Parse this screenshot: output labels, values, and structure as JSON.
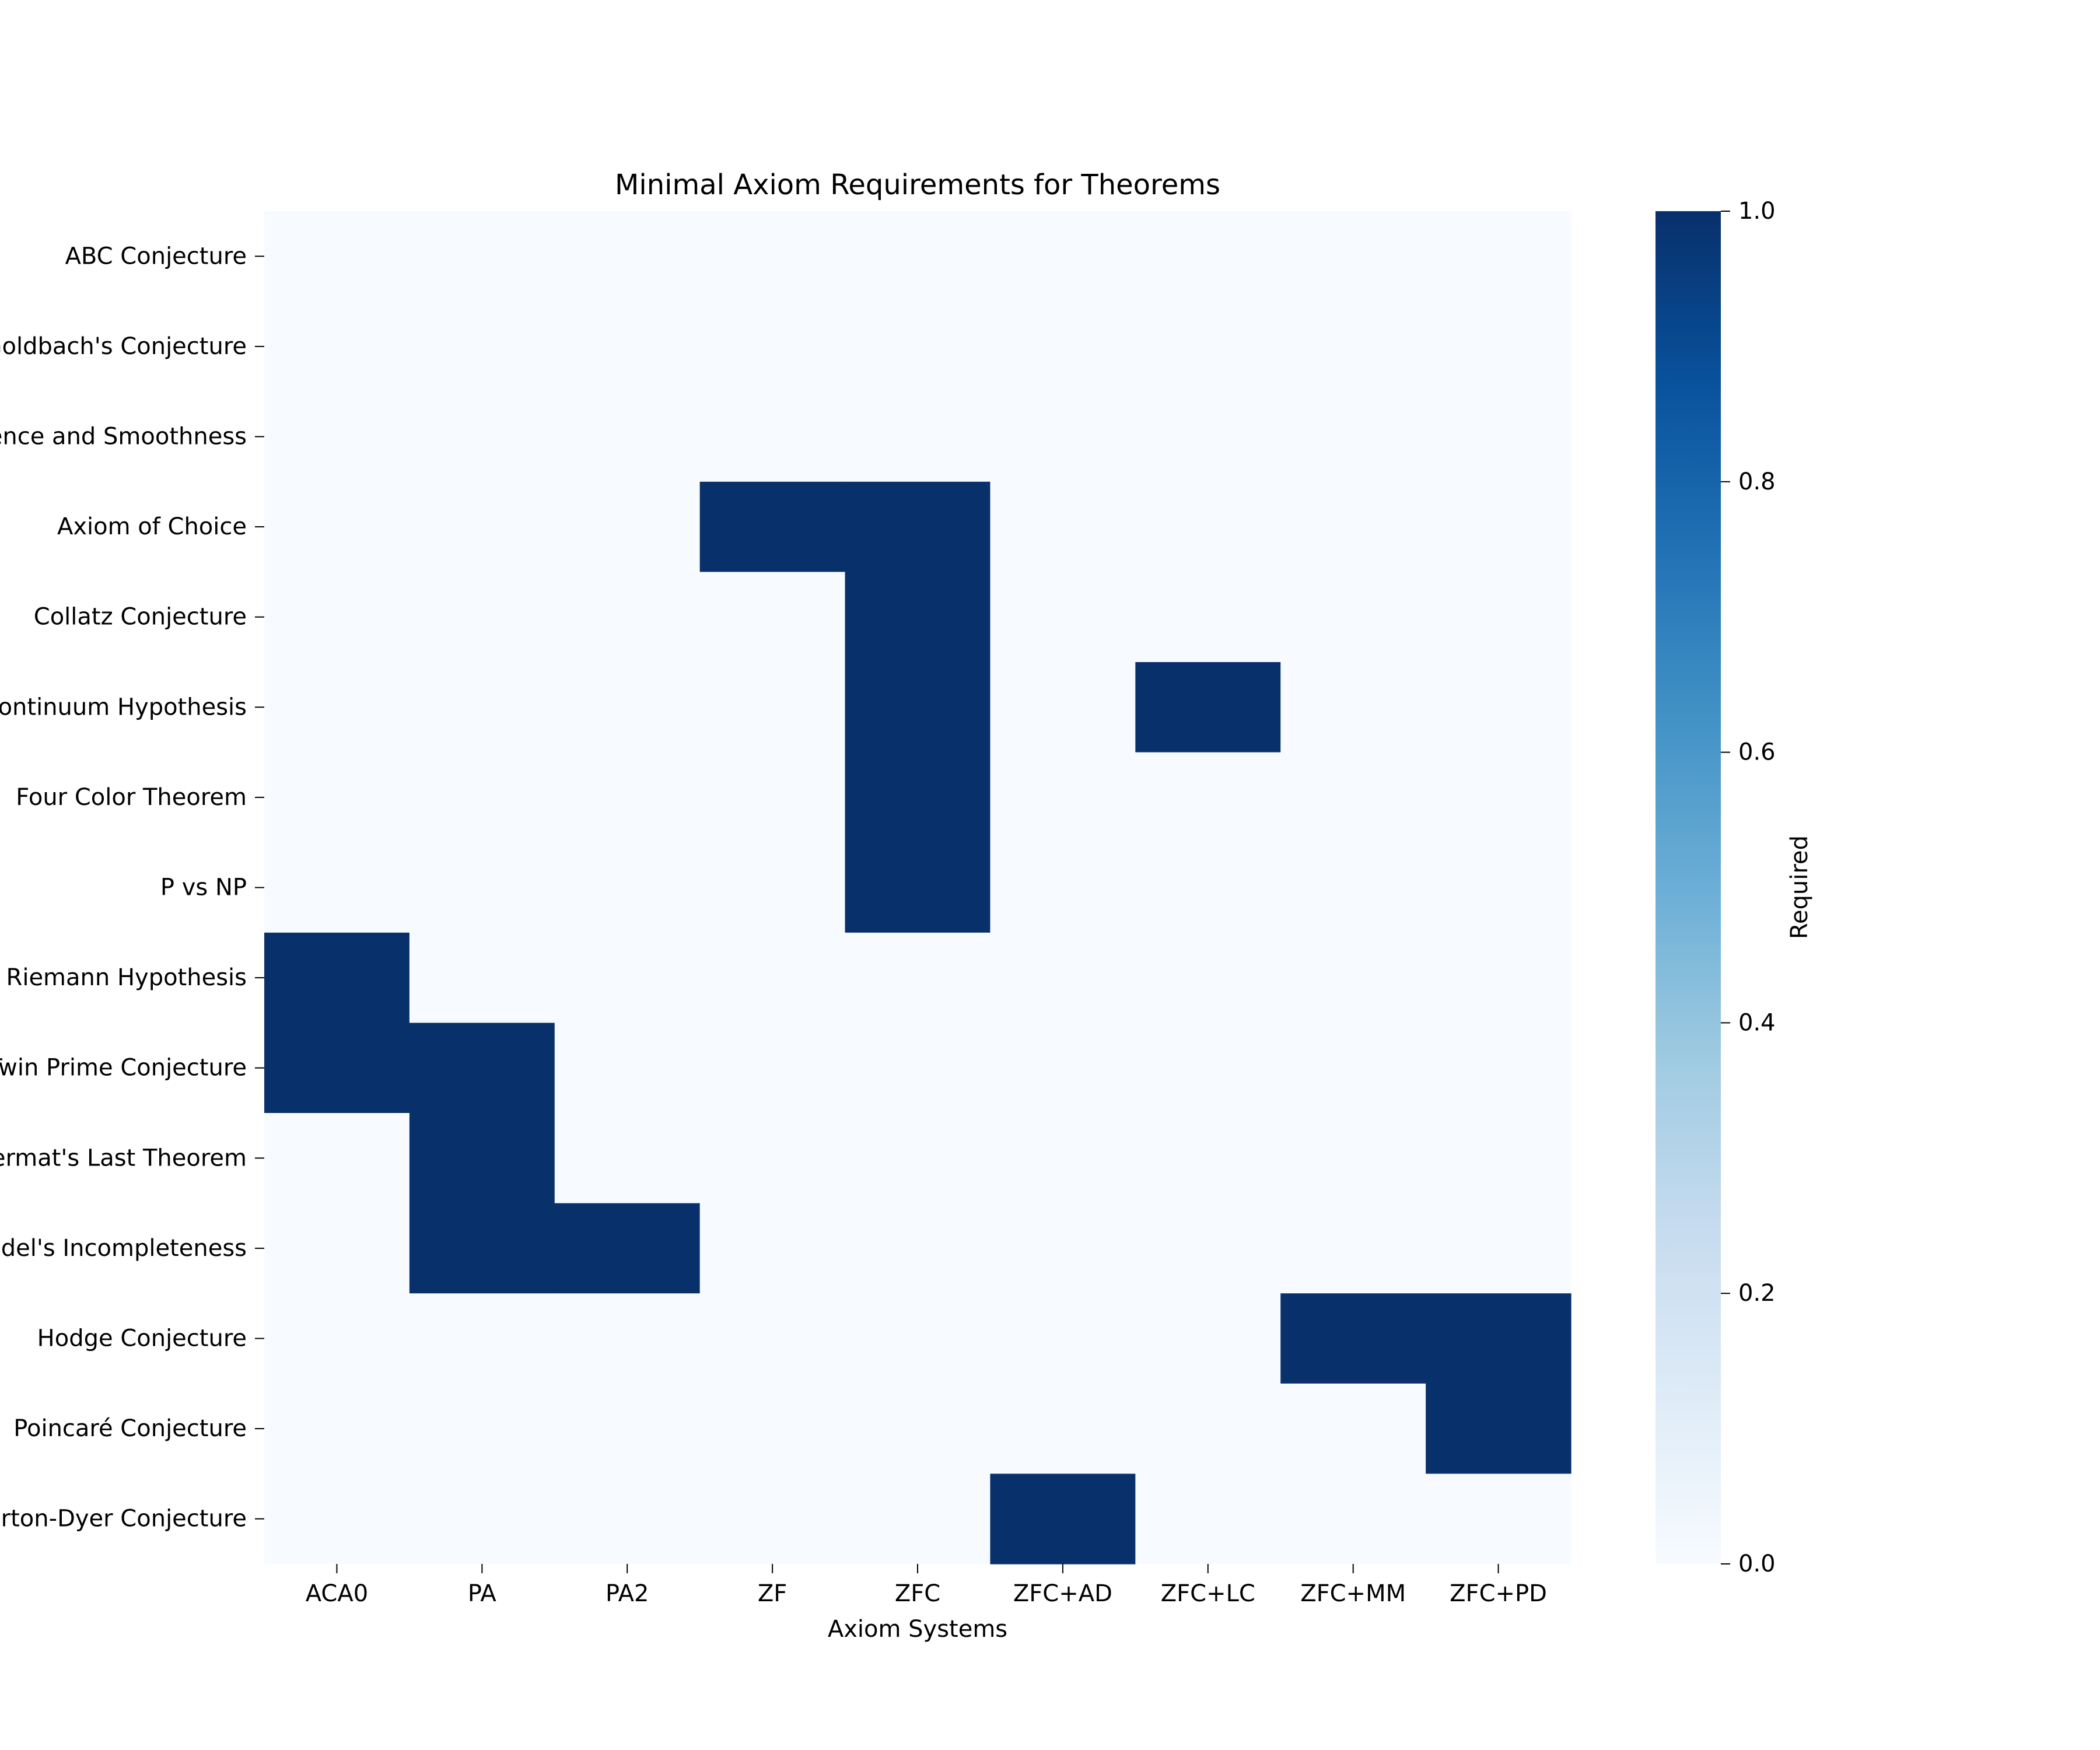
{
  "chart_data": {
    "type": "heatmap",
    "title": "Minimal Axiom Requirements for Theorems",
    "xlabel": "Axiom Systems",
    "ylabel": "",
    "x_categories": [
      "ACA0",
      "PA",
      "PA2",
      "ZF",
      "ZFC",
      "ZFC+AD",
      "ZFC+LC",
      "ZFC+MM",
      "ZFC+PD"
    ],
    "y_categories": [
      "ABC Conjecture",
      "Goldbach's Conjecture",
      "Navier-Stokes Existence and Smoothness",
      "Axiom of Choice",
      "Collatz Conjecture",
      "Continuum Hypothesis",
      "Four Color Theorem",
      "P vs NP",
      "Riemann Hypothesis",
      "Twin Prime Conjecture",
      "Fermat's Last Theorem",
      "Gödel's Incompleteness",
      "Hodge Conjecture",
      "Poincaré Conjecture",
      "Birch and Swinnerton-Dyer Conjecture"
    ],
    "values": [
      [
        0,
        0,
        0,
        0,
        0,
        0,
        0,
        0,
        0
      ],
      [
        0,
        0,
        0,
        0,
        0,
        0,
        0,
        0,
        0
      ],
      [
        0,
        0,
        0,
        0,
        0,
        0,
        0,
        0,
        0
      ],
      [
        0,
        0,
        0,
        1,
        1,
        0,
        0,
        0,
        0
      ],
      [
        0,
        0,
        0,
        0,
        1,
        0,
        0,
        0,
        0
      ],
      [
        0,
        0,
        0,
        0,
        1,
        0,
        1,
        0,
        0
      ],
      [
        0,
        0,
        0,
        0,
        1,
        0,
        0,
        0,
        0
      ],
      [
        0,
        0,
        0,
        0,
        1,
        0,
        0,
        0,
        0
      ],
      [
        1,
        0,
        0,
        0,
        0,
        0,
        0,
        0,
        0
      ],
      [
        1,
        1,
        0,
        0,
        0,
        0,
        0,
        0,
        0
      ],
      [
        0,
        1,
        0,
        0,
        0,
        0,
        0,
        0,
        0
      ],
      [
        0,
        1,
        1,
        0,
        0,
        0,
        0,
        0,
        0
      ],
      [
        0,
        0,
        0,
        0,
        0,
        0,
        0,
        1,
        1
      ],
      [
        0,
        0,
        0,
        0,
        0,
        0,
        0,
        0,
        1
      ],
      [
        0,
        0,
        0,
        0,
        0,
        1,
        0,
        0,
        0
      ]
    ],
    "colorbar": {
      "label": "Required",
      "range": [
        0,
        1
      ],
      "ticks": [
        "0.0",
        "0.2",
        "0.4",
        "0.6",
        "0.8",
        "1.0"
      ],
      "colormap": "Blues",
      "low_color": "#f7fbff",
      "high_color": "#08306b"
    },
    "grid": false,
    "legend": "colorbar-right"
  }
}
